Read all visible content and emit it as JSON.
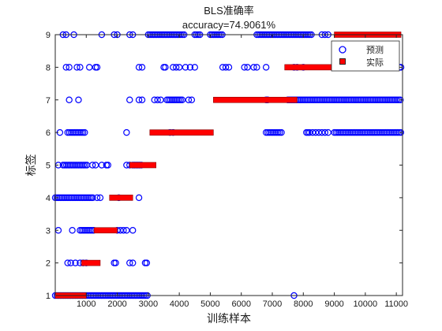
{
  "chart_data": {
    "type": "scatter",
    "title": "BLS准确率",
    "subtitle": "accuracy=74.9061%",
    "xlabel": "训练样本",
    "ylabel": "标签",
    "xlim": [
      0,
      11200
    ],
    "ylim": [
      1,
      9
    ],
    "xticks": [
      1000,
      2000,
      3000,
      4000,
      5000,
      6000,
      7000,
      8000,
      9000,
      10000,
      11000
    ],
    "xtick_labels": [
      "1000",
      "2000",
      "3000",
      "4000",
      "5000",
      "6000",
      "7000",
      "8000",
      "9000",
      "10000",
      "11000"
    ],
    "yticks": [
      1,
      2,
      3,
      4,
      5,
      6,
      7,
      8,
      9
    ],
    "ytick_labels": [
      "1",
      "2",
      "3",
      "4",
      "5",
      "6",
      "7",
      "8",
      "9"
    ],
    "grid": false,
    "legend_position": "top-right",
    "series": [
      {
        "name": "预测",
        "marker": "circle",
        "color": "#0000ff",
        "segments": [
          {
            "y": 1,
            "ranges": [
              [
                0,
                3000
              ]
            ],
            "points": [
              7700
            ]
          },
          {
            "y": 2,
            "ranges": [],
            "points": [
              400,
              500,
              650,
              800,
              900,
              1000,
              1900,
              1950,
              2400,
              2500,
              2900,
              2950
            ]
          },
          {
            "y": 3,
            "ranges": [
              [
                800,
                1250
              ]
            ],
            "points": [
              100,
              550,
              2000,
              2100,
              2200,
              2300,
              2500
            ]
          },
          {
            "y": 4,
            "ranges": [
              [
                0,
                1250
              ]
            ],
            "points": [
              1350,
              1450,
              2050,
              2700
            ]
          },
          {
            "y": 5,
            "ranges": [
              [
                250,
                1050
              ],
              [
                2500,
                2800
              ]
            ],
            "points": [
              100,
              1200,
              1300,
              1500,
              1650,
              1700,
              2300,
              2400
            ]
          },
          {
            "y": 6,
            "ranges": [
              [
                400,
                1000
              ],
              [
                6800,
                7300
              ],
              [
                9000,
                11150
              ]
            ],
            "points": [
              150,
              2300,
              3700,
              3800,
              8100,
              8150,
              8200,
              8300,
              8400,
              8500,
              8600,
              8700,
              8800
            ]
          },
          {
            "y": 7,
            "ranges": [
              [
                3600,
                4100
              ],
              [
                7500,
                11150
              ]
            ],
            "points": [
              450,
              750,
              2400,
              2700,
              2800,
              3200,
              3300,
              3400,
              4300,
              4400,
              6800,
              6850
            ]
          },
          {
            "y": 8,
            "ranges": [],
            "points": [
              350,
              450,
              700,
              800,
              1100,
              1300,
              1350,
              2700,
              2800,
              3500,
              3550,
              3800,
              3900,
              4000,
              4200,
              4350,
              4500,
              5400,
              5500,
              5600,
              6100,
              6200,
              6400,
              6500,
              6800,
              7700,
              7800,
              8000,
              11100,
              11150
            ]
          },
          {
            "y": 9,
            "ranges": [
              [
                3000,
                4200
              ],
              [
                4500,
                4700
              ],
              [
                5000,
                5400
              ],
              [
                6500,
                8300
              ]
            ],
            "points": [
              250,
              350,
              600,
              1500,
              1900,
              2000,
              2400,
              2500,
              8600,
              8700,
              8800
            ]
          }
        ]
      },
      {
        "name": "实际",
        "marker": "square",
        "color": "#ff0000",
        "segments": [
          {
            "y": 1,
            "ranges": [
              [
                0,
                1000
              ]
            ]
          },
          {
            "y": 2,
            "ranges": [
              [
                850,
                1450
              ]
            ]
          },
          {
            "y": 3,
            "ranges": [
              [
                1250,
                2000
              ]
            ]
          },
          {
            "y": 4,
            "ranges": [
              [
                1750,
                2500
              ]
            ]
          },
          {
            "y": 5,
            "ranges": [
              [
                2400,
                3250
              ]
            ]
          },
          {
            "y": 6,
            "ranges": [
              [
                3050,
                5100
              ]
            ]
          },
          {
            "y": 7,
            "ranges": [
              [
                5100,
                7800
              ]
            ]
          },
          {
            "y": 8,
            "ranges": [
              [
                7400,
                9000
              ]
            ]
          },
          {
            "y": 9,
            "ranges": [
              [
                9000,
                11150
              ]
            ]
          }
        ]
      }
    ]
  }
}
